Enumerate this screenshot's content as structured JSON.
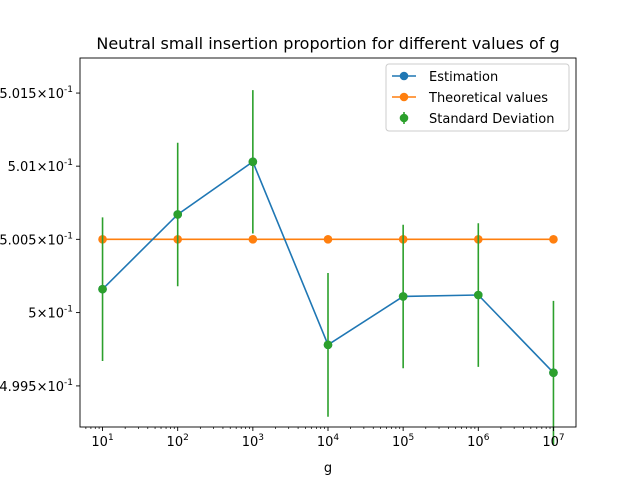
{
  "chart_data": {
    "type": "line",
    "title": "Neutral small insertion proportion for different values of g",
    "xlabel": "g",
    "ylabel": "",
    "x_scale": "log",
    "y_scale": "log",
    "x": [
      10,
      100,
      1000,
      10000,
      100000,
      1000000,
      10000000
    ],
    "x_tick_labels": [
      {
        "base": "10",
        "exp": "1"
      },
      {
        "base": "10",
        "exp": "2"
      },
      {
        "base": "10",
        "exp": "3"
      },
      {
        "base": "10",
        "exp": "4"
      },
      {
        "base": "10",
        "exp": "5"
      },
      {
        "base": "10",
        "exp": "6"
      },
      {
        "base": "10",
        "exp": "7"
      }
    ],
    "y_ticks": [
      {
        "value": 0.4995,
        "mant": "4.995",
        "exp": "-1"
      },
      {
        "value": 0.5,
        "mant": "5",
        "exp": "-1"
      },
      {
        "value": 0.5005,
        "mant": "5.005",
        "exp": "-1"
      },
      {
        "value": 0.501,
        "mant": "5.01",
        "exp": "-1"
      },
      {
        "value": 0.5015,
        "mant": "5.015",
        "exp": "-1"
      }
    ],
    "ylim": [
      0.49922,
      0.50174
    ],
    "series": [
      {
        "name": "Estimation",
        "color": "#1f77b4",
        "values": [
          0.50016,
          0.50067,
          0.50103,
          0.49978,
          0.50011,
          0.50012,
          0.49959
        ]
      },
      {
        "name": "Theoretical values",
        "color": "#ff7f0e",
        "values": [
          0.5005,
          0.5005,
          0.5005,
          0.5005,
          0.5005,
          0.5005,
          0.5005
        ]
      },
      {
        "name": "Standard Deviation",
        "color": "#2ca02c",
        "values": [
          0.50016,
          0.50067,
          0.50103,
          0.49978,
          0.50011,
          0.50012,
          0.49959
        ],
        "error": [
          0.00049,
          0.00049,
          0.00049,
          0.00049,
          0.00049,
          0.00049,
          0.00049
        ]
      }
    ],
    "legend_placement": "top-right",
    "grid": false
  }
}
